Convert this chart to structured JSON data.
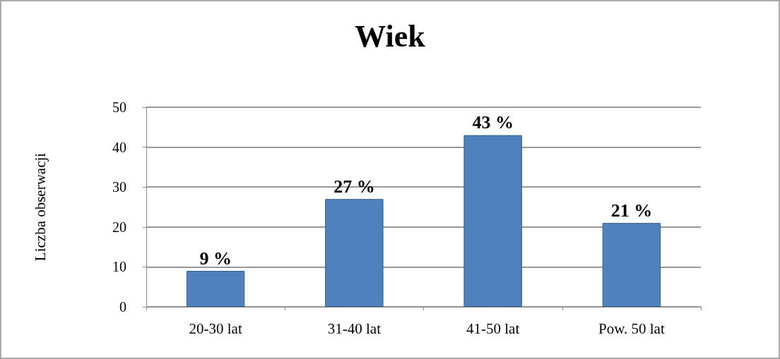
{
  "chart_data": {
    "type": "bar",
    "title": "Wiek",
    "ylabel": "Liczba obserwacji",
    "categories": [
      "20-30 lat",
      "31-40 lat",
      "41-50 lat",
      "Pow. 50 lat"
    ],
    "values": [
      9,
      27,
      43,
      21
    ],
    "value_labels": [
      "9 %",
      "27 %",
      "43 %",
      "21 %"
    ],
    "color": "#4f81bd",
    "ylim": [
      0,
      50
    ],
    "yticks": [
      0,
      10,
      20,
      30,
      40,
      50
    ],
    "grid": "y"
  }
}
